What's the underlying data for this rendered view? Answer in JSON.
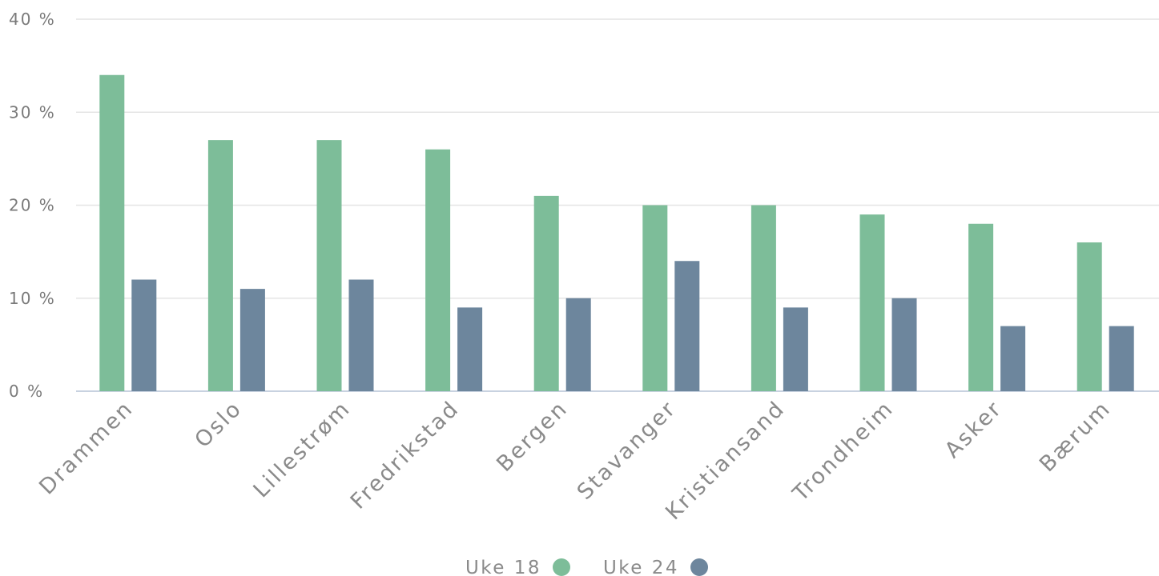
{
  "chart_data": {
    "type": "bar",
    "categories": [
      "Drammen",
      "Oslo",
      "Lillestrøm",
      "Fredrikstad",
      "Bergen",
      "Stavanger",
      "Kristiansand",
      "Trondheim",
      "Asker",
      "Bærum"
    ],
    "series": [
      {
        "name": "Uke 18",
        "color": "#7dbd99",
        "values": [
          34,
          27,
          27,
          26,
          21,
          20,
          20,
          19,
          18,
          16
        ]
      },
      {
        "name": "Uke 24",
        "color": "#6d869d",
        "values": [
          12,
          11,
          12,
          9,
          10,
          14,
          9,
          10,
          7,
          7
        ]
      }
    ],
    "y_ticks": [
      "0 %",
      "10 %",
      "20 %",
      "30 %",
      "40 %"
    ],
    "ylim": [
      0,
      40
    ],
    "unit": "%",
    "grid": true,
    "legend_position": "bottom-center",
    "title": "",
    "xlabel": "",
    "ylabel": ""
  }
}
